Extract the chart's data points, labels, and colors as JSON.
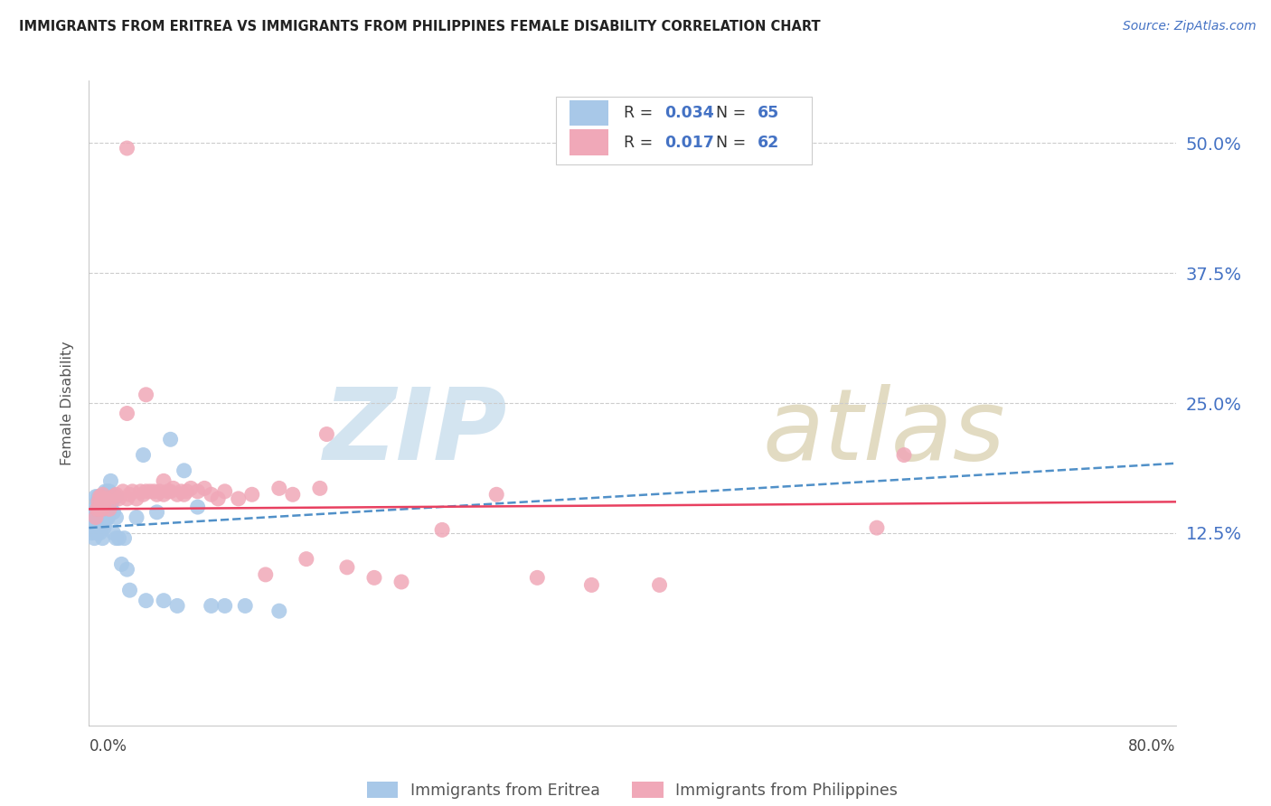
{
  "title": "IMMIGRANTS FROM ERITREA VS IMMIGRANTS FROM PHILIPPINES FEMALE DISABILITY CORRELATION CHART",
  "source": "Source: ZipAtlas.com",
  "ylabel": "Female Disability",
  "ytick_labels": [
    "50.0%",
    "37.5%",
    "25.0%",
    "12.5%"
  ],
  "ytick_values": [
    0.5,
    0.375,
    0.25,
    0.125
  ],
  "xmin": 0.0,
  "xmax": 0.8,
  "ymin": -0.06,
  "ymax": 0.56,
  "legend_eritrea_R": "0.034",
  "legend_eritrea_N": "65",
  "legend_philippines_R": "0.017",
  "legend_philippines_N": "62",
  "eritrea_color": "#a8c8e8",
  "philippines_color": "#f0a8b8",
  "eritrea_trend_color": "#5090c8",
  "philippines_trend_color": "#e84060",
  "background_color": "#ffffff",
  "eritrea_trend_x": [
    0.0,
    0.8
  ],
  "eritrea_trend_y": [
    0.13,
    0.192
  ],
  "philippines_trend_x": [
    0.0,
    0.8
  ],
  "philippines_trend_y": [
    0.148,
    0.155
  ],
  "eritrea_x": [
    0.002,
    0.003,
    0.003,
    0.004,
    0.004,
    0.005,
    0.005,
    0.005,
    0.005,
    0.006,
    0.006,
    0.006,
    0.006,
    0.007,
    0.007,
    0.007,
    0.007,
    0.008,
    0.008,
    0.008,
    0.008,
    0.009,
    0.009,
    0.009,
    0.01,
    0.01,
    0.01,
    0.011,
    0.011,
    0.012,
    0.012,
    0.012,
    0.013,
    0.013,
    0.014,
    0.014,
    0.015,
    0.015,
    0.016,
    0.016,
    0.017,
    0.018,
    0.018,
    0.019,
    0.02,
    0.02,
    0.02,
    0.022,
    0.024,
    0.026,
    0.028,
    0.03,
    0.035,
    0.04,
    0.042,
    0.05,
    0.055,
    0.06,
    0.065,
    0.07,
    0.08,
    0.09,
    0.1,
    0.115,
    0.14
  ],
  "eritrea_y": [
    0.125,
    0.13,
    0.14,
    0.12,
    0.145,
    0.13,
    0.14,
    0.15,
    0.16,
    0.125,
    0.135,
    0.145,
    0.155,
    0.13,
    0.14,
    0.15,
    0.16,
    0.125,
    0.135,
    0.145,
    0.155,
    0.13,
    0.145,
    0.16,
    0.12,
    0.135,
    0.15,
    0.13,
    0.155,
    0.135,
    0.145,
    0.165,
    0.14,
    0.16,
    0.14,
    0.165,
    0.145,
    0.165,
    0.155,
    0.175,
    0.155,
    0.125,
    0.145,
    0.16,
    0.12,
    0.14,
    0.16,
    0.12,
    0.095,
    0.12,
    0.09,
    0.07,
    0.14,
    0.2,
    0.06,
    0.145,
    0.06,
    0.215,
    0.055,
    0.185,
    0.15,
    0.055,
    0.055,
    0.055,
    0.05
  ],
  "philippines_x": [
    0.005,
    0.006,
    0.007,
    0.008,
    0.008,
    0.009,
    0.01,
    0.01,
    0.011,
    0.012,
    0.015,
    0.018,
    0.02,
    0.022,
    0.025,
    0.028,
    0.03,
    0.032,
    0.035,
    0.038,
    0.04,
    0.042,
    0.045,
    0.048,
    0.05,
    0.052,
    0.055,
    0.058,
    0.06,
    0.062,
    0.065,
    0.068,
    0.07,
    0.072,
    0.075,
    0.08,
    0.085,
    0.09,
    0.095,
    0.1,
    0.11,
    0.12,
    0.13,
    0.14,
    0.15,
    0.16,
    0.17,
    0.19,
    0.21,
    0.23,
    0.26,
    0.3,
    0.33,
    0.37,
    0.42,
    0.58,
    0.028,
    0.042,
    0.175,
    0.028,
    0.055,
    0.6
  ],
  "philippines_y": [
    0.14,
    0.148,
    0.155,
    0.16,
    0.148,
    0.155,
    0.162,
    0.148,
    0.152,
    0.158,
    0.148,
    0.16,
    0.162,
    0.158,
    0.165,
    0.158,
    0.162,
    0.165,
    0.158,
    0.165,
    0.162,
    0.165,
    0.165,
    0.165,
    0.162,
    0.165,
    0.162,
    0.165,
    0.165,
    0.168,
    0.162,
    0.165,
    0.162,
    0.165,
    0.168,
    0.165,
    0.168,
    0.162,
    0.158,
    0.165,
    0.158,
    0.162,
    0.085,
    0.168,
    0.162,
    0.1,
    0.168,
    0.092,
    0.082,
    0.078,
    0.128,
    0.162,
    0.082,
    0.075,
    0.075,
    0.13,
    0.495,
    0.258,
    0.22,
    0.24,
    0.175,
    0.2
  ]
}
